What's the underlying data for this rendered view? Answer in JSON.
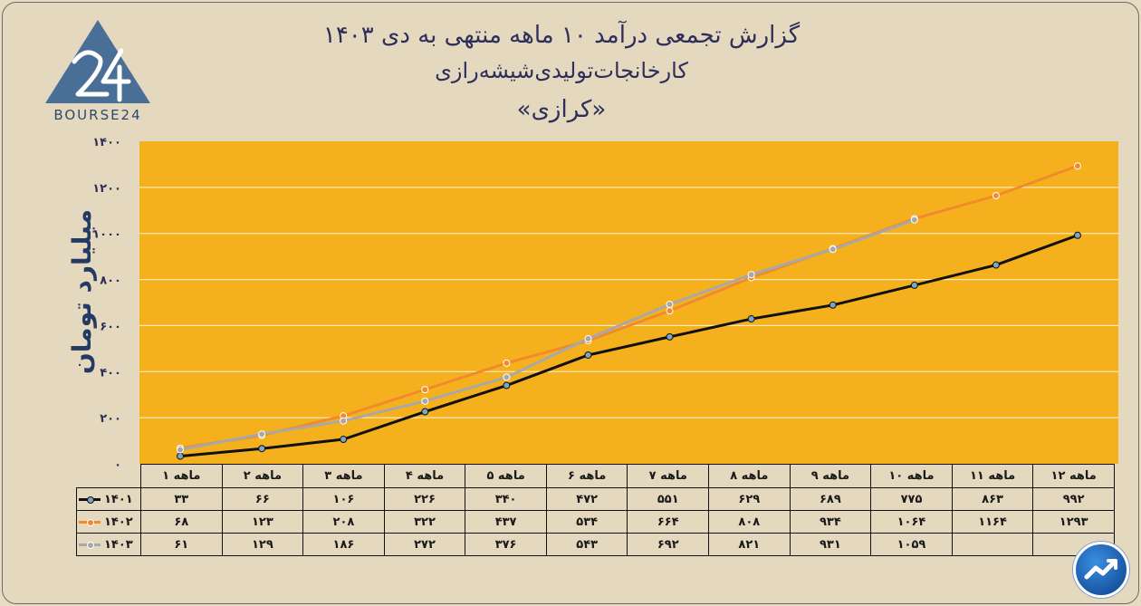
{
  "title": {
    "line1": "گزارش تجمعی درآمد ۱۰ ماهه منتهی به دی ۱۴۰۳",
    "line2": "کارخانجات‌تولیدی‌شیشه‌رازی",
    "line3": "«کرازی»"
  },
  "logo": {
    "text": "BOURSE24",
    "mark": "24"
  },
  "colors": {
    "background": "#e4d9bf",
    "plot_area": "#f5b11d",
    "series_1401": "#111111",
    "series_1402": "#f08a2c",
    "series_1403": "#a8a8a8",
    "title": "#2e2e5a"
  },
  "icons": {
    "badge": "chart-trend-badge-icon"
  },
  "chart_data": {
    "type": "line",
    "ylabel": "میلیارد تومان",
    "ylim": [
      0,
      1400
    ],
    "yticks": [
      "۰",
      "۲۰۰",
      "۴۰۰",
      "۶۰۰",
      "۸۰۰",
      "۱۰۰۰",
      "۱۲۰۰",
      "۱۴۰۰"
    ],
    "categories": [
      "۱ ماهه",
      "۲ ماهه",
      "۳ ماهه",
      "۴ ماهه",
      "۵ ماهه",
      "۶ ماهه",
      "۷ ماهه",
      "۸ ماهه",
      "۹ ماهه",
      "۱۰ ماهه",
      "۱۱ ماهه",
      "۱۲ ماهه"
    ],
    "grid": true,
    "series": [
      {
        "name": "۱۴۰۱",
        "values": [
          33,
          66,
          106,
          226,
          340,
          472,
          551,
          629,
          689,
          775,
          863,
          992
        ],
        "labels": [
          "۳۳",
          "۶۶",
          "۱۰۶",
          "۲۲۶",
          "۳۴۰",
          "۴۷۲",
          "۵۵۱",
          "۶۲۹",
          "۶۸۹",
          "۷۷۵",
          "۸۶۳",
          "۹۹۲"
        ]
      },
      {
        "name": "۱۴۰۲",
        "values": [
          68,
          123,
          208,
          322,
          437,
          534,
          664,
          808,
          934,
          1064,
          1164,
          1293
        ],
        "labels": [
          "۶۸",
          "۱۲۳",
          "۲۰۸",
          "۳۲۲",
          "۴۳۷",
          "۵۳۴",
          "۶۶۴",
          "۸۰۸",
          "۹۳۴",
          "۱۰۶۴",
          "۱۱۶۴",
          "۱۲۹۳"
        ]
      },
      {
        "name": "۱۴۰۳",
        "values": [
          61,
          129,
          186,
          272,
          376,
          543,
          692,
          821,
          931,
          1059,
          null,
          null
        ],
        "labels": [
          "۶۱",
          "۱۲۹",
          "۱۸۶",
          "۲۷۲",
          "۳۷۶",
          "۵۴۳",
          "۶۹۲",
          "۸۲۱",
          "۹۳۱",
          "۱۰۵۹",
          "",
          ""
        ]
      }
    ]
  }
}
